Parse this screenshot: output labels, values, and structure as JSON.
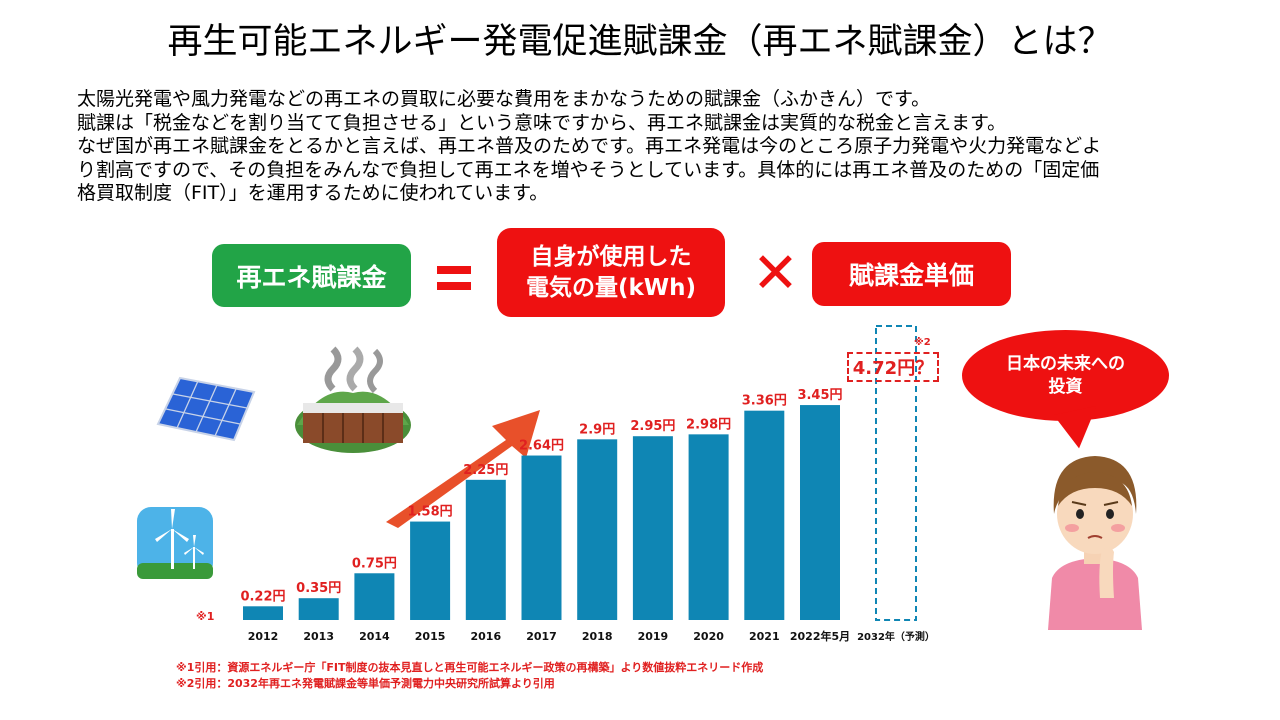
{
  "title": "再生可能エネルギー発電促進賦課金（再エネ賦課金）とは？",
  "paragraph": [
    "太陽光発電や風力発電などの再エネの買取に必要な費用をまかなうための賦課金（ふかきん）です。",
    "賦課は「税金などを割り当てて負担させる」という意味ですから、再エネ賦課金は実質的な税金と言えます。",
    "なぜ国が再エネ賦課金をとるかと言えば、再エネ普及のためです。再エネ発電は今のところ原子力発電や火力発電などよ",
    "り割高ですので、その負担をみんなで負担して再エネを増やそうとしています。具体的には再エネ普及のための「固定価",
    "格買取制度（FIT）」を運用するために使われています。"
  ],
  "formula": {
    "left": "再エネ賦課金",
    "middle_line1": "自身が使用した",
    "middle_line2": "電気の量(kWh)",
    "right": "賦課金単価"
  },
  "callout": {
    "line1": "日本の未来への",
    "line2": "投資"
  },
  "prediction": {
    "label": "4.72円？",
    "ref": "※2",
    "category": "2032年（予測）"
  },
  "ref_mark1": "※1",
  "footnotes": [
    "※1引用：資源エネルギー庁「FIT制度の抜本見直しと再生可能エネルギー政策の再構築」より数値抜粋エネリード作成",
    "※2引用：2032年再エネ発電賦課金等単価予測電力中央研究所試算より引用"
  ],
  "colors": {
    "bar": "#0f86b4",
    "label": "#e02020",
    "green": "#22a447",
    "red": "#ee1111",
    "arrow": "#e8502a"
  },
  "chart_data": {
    "type": "bar",
    "categories": [
      "2012",
      "2013",
      "2014",
      "2015",
      "2016",
      "2017",
      "2018",
      "2019",
      "2020",
      "2021",
      "2022年5月",
      "2032年（予測）"
    ],
    "values": [
      0.22,
      0.35,
      0.75,
      1.58,
      2.25,
      2.64,
      2.9,
      2.95,
      2.98,
      3.36,
      3.45,
      4.72
    ],
    "data_labels": [
      "0.22円",
      "0.35円",
      "0.75円",
      "1.58円",
      "2.25円",
      "2.64円",
      "2.9円",
      "2.95円",
      "2.98円",
      "3.36円",
      "3.45円",
      "4.72円？"
    ],
    "predicted_index": 11,
    "unit": "円",
    "grid": false
  }
}
